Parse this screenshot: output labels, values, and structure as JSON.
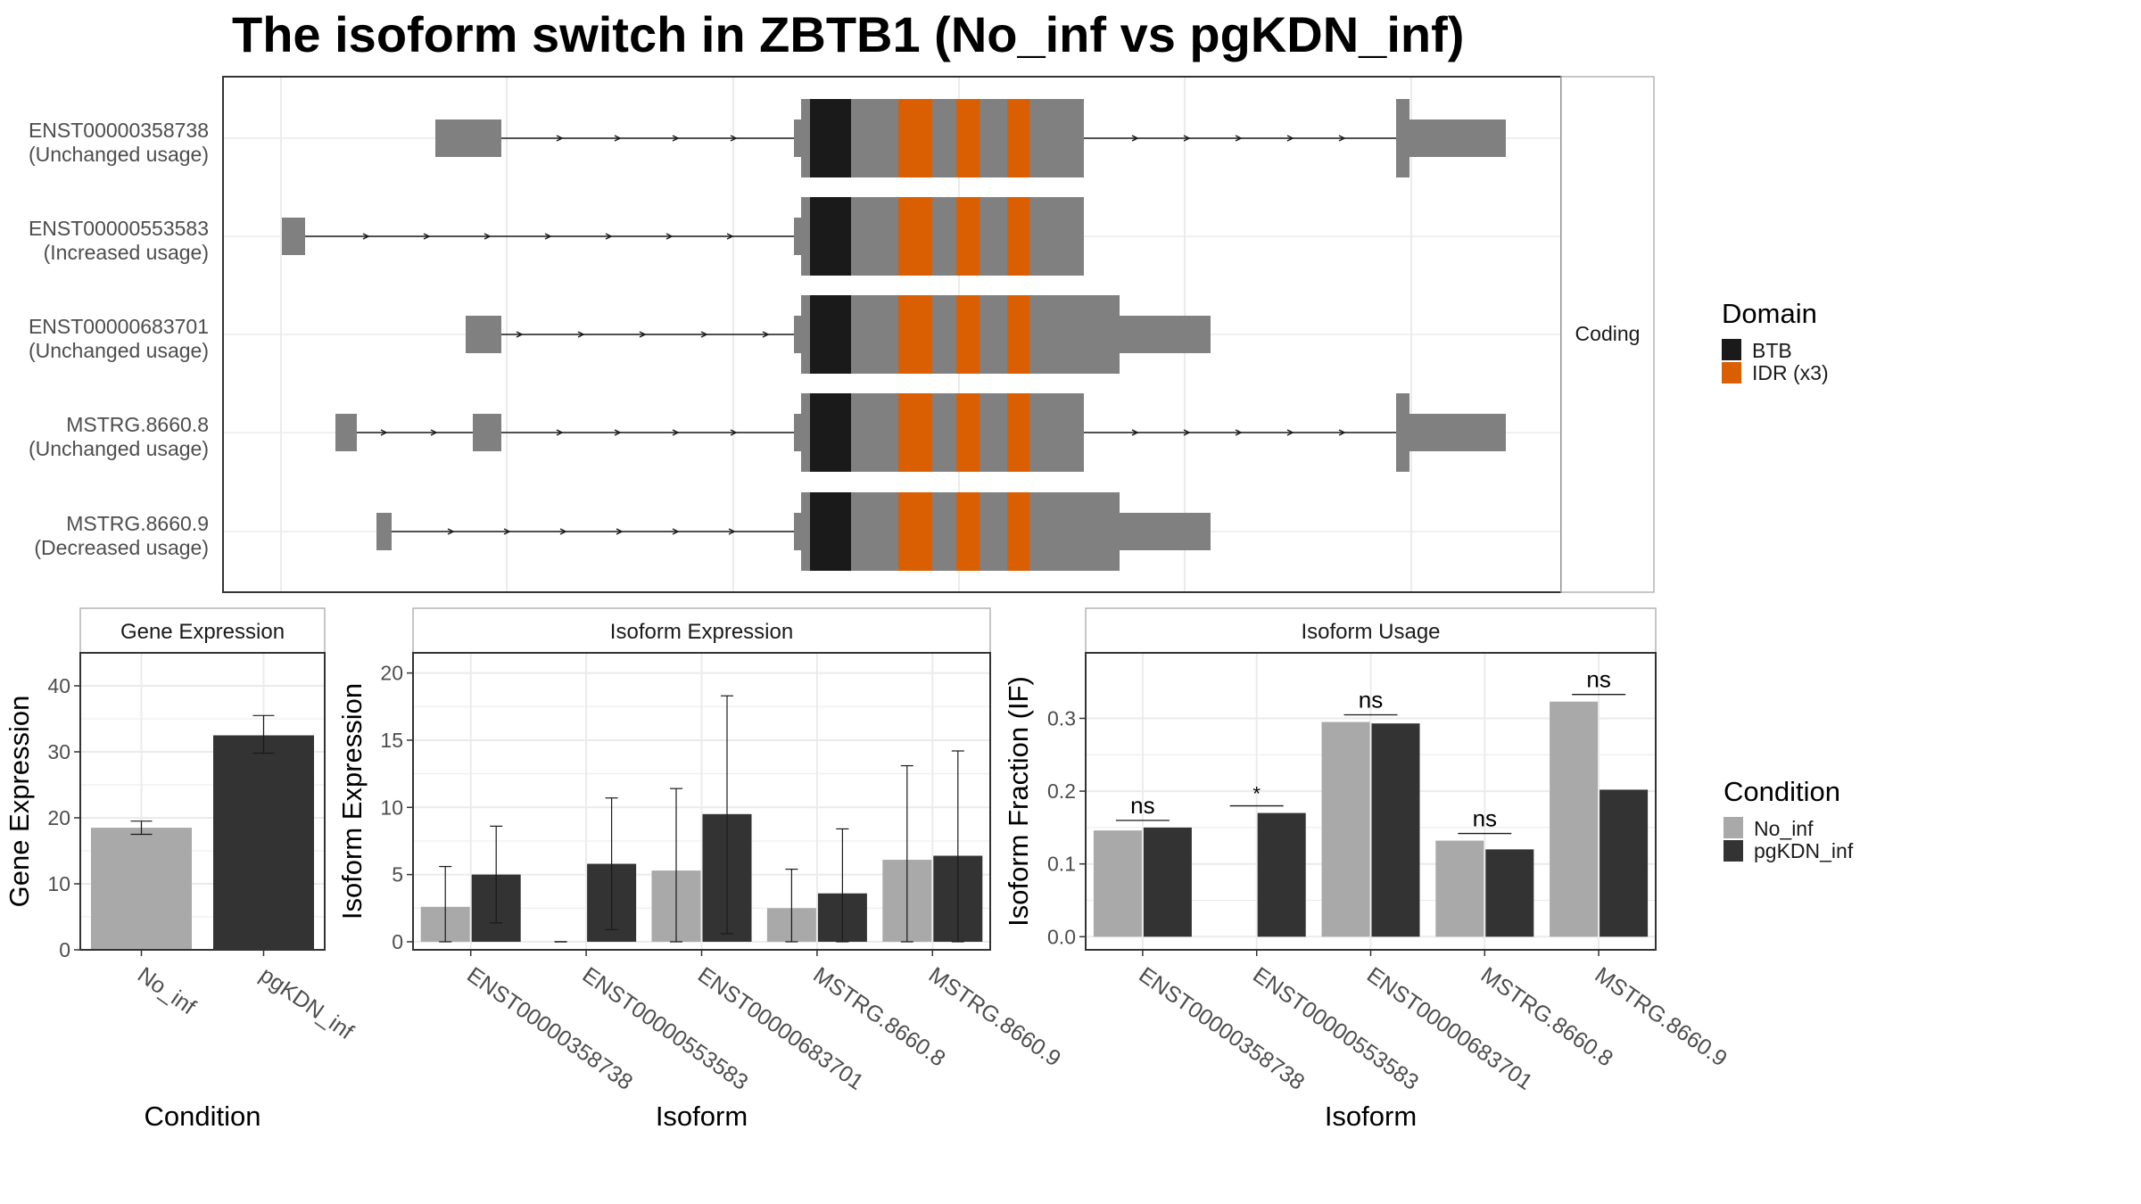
{
  "title": "The isoform switch in ZBTB1 (No_inf vs pgKDN_inf)",
  "colors": {
    "exon": "#808080",
    "btb": "#1a1a1a",
    "idr": "#d95f02",
    "no_inf": "#a9a9a9",
    "pgkdn_inf": "#333333",
    "panel_border": "#333333",
    "strip_border": "#b3b3b3",
    "grid": "#ebebeb"
  },
  "structure": {
    "strip_label": "Coding",
    "isoforms": [
      {
        "id": "ENST00000358738",
        "usage": "(Unchanged usage)"
      },
      {
        "id": "ENST00000553583",
        "usage": "(Increased usage)"
      },
      {
        "id": "ENST00000683701",
        "usage": "(Unchanged usage)"
      },
      {
        "id": "MSTRG.8660.8",
        "usage": "(Unchanged usage)"
      },
      {
        "id": "MSTRG.8660.9",
        "usage": "(Decreased usage)"
      }
    ],
    "domain_legend": {
      "title": "Domain",
      "items": [
        {
          "label": "BTB",
          "color": "#1a1a1a"
        },
        {
          "label": "IDR (x3)",
          "color": "#d95f02"
        }
      ]
    }
  },
  "condition_legend": {
    "title": "Condition",
    "items": [
      {
        "label": "No_inf",
        "color": "#a9a9a9"
      },
      {
        "label": "pgKDN_inf",
        "color": "#333333"
      }
    ]
  },
  "chart_data": [
    {
      "type": "bar",
      "strip": "Gene Expression",
      "xlabel": "Condition",
      "ylabel": "Gene Expression",
      "categories": [
        "No_inf",
        "pgKDN_inf"
      ],
      "values": [
        18.5,
        32.5
      ],
      "error": [
        [
          17.5,
          19.5
        ],
        [
          29.8,
          35.5
        ]
      ],
      "ylim": [
        0,
        45
      ],
      "yticks": [
        0,
        10,
        20,
        30,
        40
      ]
    },
    {
      "type": "bar",
      "strip": "Isoform Expression",
      "xlabel": "Isoform",
      "ylabel": "Isoform Expression",
      "categories": [
        "ENST00000358738",
        "ENST00000553583",
        "ENST00000683701",
        "MSTRG.8660.8",
        "MSTRG.8660.9"
      ],
      "series": [
        {
          "name": "No_inf",
          "values": [
            2.6,
            0,
            5.3,
            2.5,
            6.1
          ],
          "error": [
            [
              0,
              5.6
            ],
            [
              0,
              0
            ],
            [
              0,
              11.4
            ],
            [
              0,
              5.4
            ],
            [
              0,
              13.1
            ]
          ]
        },
        {
          "name": "pgKDN_inf",
          "values": [
            5.0,
            5.8,
            9.5,
            3.6,
            6.4
          ],
          "error": [
            [
              1.4,
              8.6
            ],
            [
              0.9,
              10.7
            ],
            [
              0.6,
              18.3
            ],
            [
              0,
              8.4
            ],
            [
              0,
              14.2
            ]
          ]
        }
      ],
      "ylim": [
        -0.6,
        21.5
      ],
      "yticks": [
        0,
        5,
        10,
        15,
        20
      ]
    },
    {
      "type": "bar",
      "strip": "Isoform Usage",
      "xlabel": "Isoform",
      "ylabel": "Isoform Fraction (IF)",
      "categories": [
        "ENST00000358738",
        "ENST00000553583",
        "ENST00000683701",
        "MSTRG.8660.8",
        "MSTRG.8660.9"
      ],
      "series": [
        {
          "name": "No_inf",
          "values": [
            0.146,
            0,
            0.295,
            0.132,
            0.323
          ]
        },
        {
          "name": "pgKDN_inf",
          "values": [
            0.15,
            0.17,
            0.293,
            0.12,
            0.202
          ]
        }
      ],
      "significance": [
        "ns",
        "*",
        "ns",
        "ns",
        "ns"
      ],
      "ylim": [
        -0.018,
        0.39
      ],
      "yticks": [
        0.0,
        0.1,
        0.2,
        0.3
      ]
    }
  ]
}
